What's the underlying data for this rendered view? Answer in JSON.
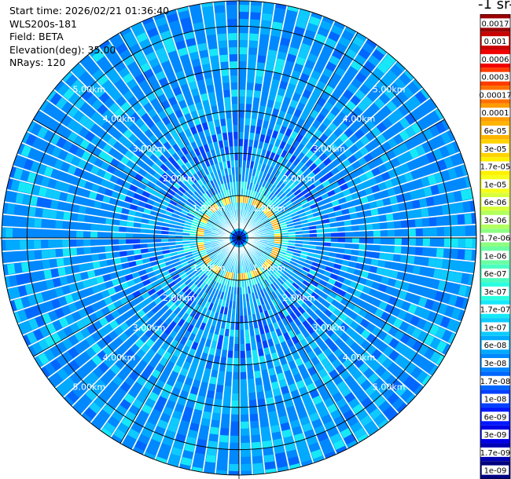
{
  "header": {
    "start_time": "Start time: 2026/02/21 01:36:40",
    "instrument": "WLS200s-181",
    "field": "Field: BETA",
    "elevation": "Elevation(deg): 35.00",
    "nrays": "NRays: 120"
  },
  "colorbar": {
    "title": "-1 sr-",
    "labels": [
      "0.0017",
      "0.001",
      "0.0006",
      "0.0003",
      "0.00017",
      "0.0001",
      "6e-05",
      "3e-05",
      "1.7e-05",
      "1e-05",
      "6e-06",
      "3e-06",
      "1.7e-06",
      "1e-06",
      "6e-07",
      "3e-07",
      "1.7e-07",
      "1e-07",
      "6e-08",
      "3e-08",
      "1.7e-08",
      "1e-08",
      "6e-09",
      "3e-09",
      "1.7e-09",
      "1e-09"
    ],
    "colors": [
      "#9a0000",
      "#c80000",
      "#f20000",
      "#ff3c00",
      "#ff7000",
      "#ff9c00",
      "#ffb400",
      "#ffd200",
      "#fff000",
      "#f6ff1c",
      "#d8ff3c",
      "#b2ff5e",
      "#8cff82",
      "#6affa2",
      "#4cffc0",
      "#2cffe0",
      "#16e8f8",
      "#0ecaff",
      "#00aaff",
      "#0088ff",
      "#0066ff",
      "#0040ff",
      "#0018ff",
      "#0000e6",
      "#0000b4",
      "#000080"
    ]
  },
  "chart_data": {
    "type": "heatmap",
    "projection": "polar PPI",
    "title": "",
    "field": "BETA",
    "n_rays": 120,
    "max_range_km": 5.6,
    "range_rings_km": [
      1.0,
      2.0,
      3.0,
      4.0,
      5.0
    ],
    "range_labels": [
      "1.00km",
      "2.00km",
      "3.00km",
      "4.00km",
      "5.00km"
    ],
    "spokes_deg_step": 30,
    "background_level": "3e-08 to 1e-07 (blue/cyan)",
    "near_field_ring": {
      "range_km": [
        0.8,
        0.95
      ],
      "level": "1.7e-05 to 1e-04 (yellow/orange)"
    },
    "colorbar_scale": "log"
  }
}
